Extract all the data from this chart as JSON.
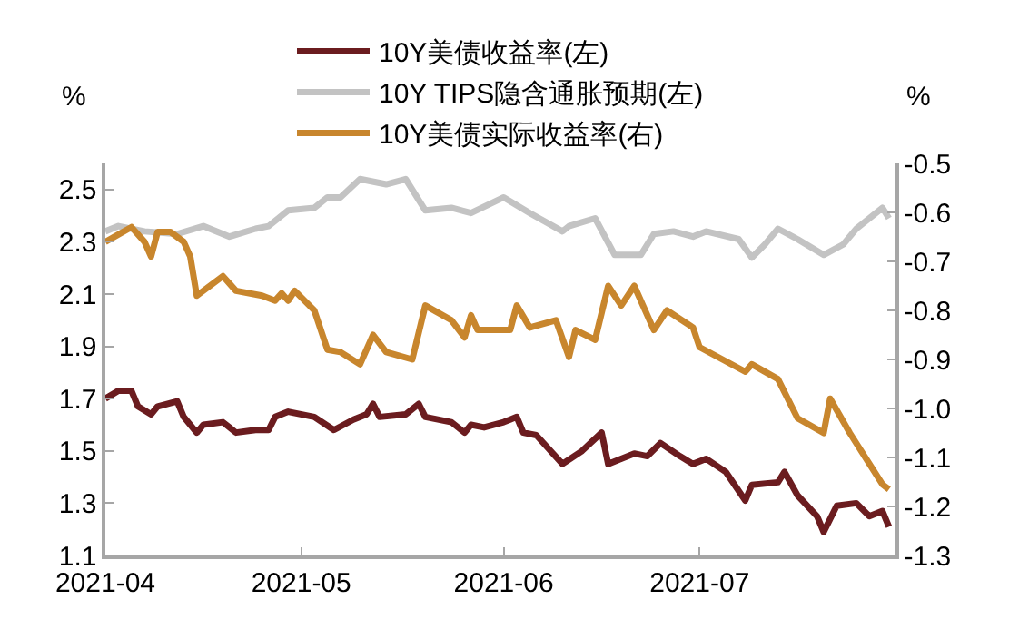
{
  "chart_data": {
    "type": "line",
    "ylabel": "%",
    "y2label": "%",
    "xlim": [
      "2021-04-01",
      "2021-07-31"
    ],
    "xticks": [
      "2021-04",
      "2021-05",
      "2021-06",
      "2021-07"
    ],
    "ylim": [
      1.1,
      2.6
    ],
    "yticks": [
      1.1,
      1.3,
      1.5,
      1.7,
      1.9,
      2.1,
      2.3,
      2.5
    ],
    "y2lim": [
      -1.3,
      -0.5
    ],
    "y2ticks": [
      -1.3,
      -1.2,
      -1.1,
      {
        "value": -1.0,
        "label": "-1.0"
      },
      -0.9,
      -0.8,
      -0.7,
      -0.6,
      -0.5
    ],
    "legend": "top",
    "marker": "none",
    "line_style": "solid",
    "series": [
      {
        "name": "10Y美债收益率(左)",
        "color": "#6b1c1f",
        "x": [
          "2021-04-01",
          "2021-04-03",
          "2021-04-05",
          "2021-04-06",
          "2021-04-08",
          "2021-04-09",
          "2021-04-12",
          "2021-04-13",
          "2021-04-15",
          "2021-04-16",
          "2021-04-19",
          "2021-04-21",
          "2021-04-24",
          "2021-04-26",
          "2021-04-27",
          "2021-04-29",
          "2021-05-03",
          "2021-05-06",
          "2021-05-09",
          "2021-05-11",
          "2021-05-12",
          "2021-05-13",
          "2021-05-17",
          "2021-05-19",
          "2021-05-20",
          "2021-05-24",
          "2021-05-26",
          "2021-05-27",
          "2021-05-29",
          "2021-06-01",
          "2021-06-02",
          "2021-06-03",
          "2021-06-04",
          "2021-06-06",
          "2021-06-10",
          "2021-06-13",
          "2021-06-16",
          "2021-06-17",
          "2021-06-21",
          "2021-06-23",
          "2021-06-25",
          "2021-06-28",
          "2021-06-30",
          "2021-07-02",
          "2021-07-05",
          "2021-07-08",
          "2021-07-09",
          "2021-07-13",
          "2021-07-14",
          "2021-07-16",
          "2021-07-19",
          "2021-07-20",
          "2021-07-22",
          "2021-07-25",
          "2021-07-27",
          "2021-07-29",
          "2021-07-30"
        ],
        "values": [
          1.7,
          1.73,
          1.73,
          1.67,
          1.64,
          1.67,
          1.69,
          1.63,
          1.57,
          1.6,
          1.61,
          1.57,
          1.58,
          1.58,
          1.63,
          1.65,
          1.63,
          1.58,
          1.62,
          1.64,
          1.68,
          1.63,
          1.64,
          1.68,
          1.63,
          1.61,
          1.57,
          1.6,
          1.59,
          1.61,
          1.62,
          1.63,
          1.57,
          1.56,
          1.45,
          1.5,
          1.57,
          1.45,
          1.49,
          1.48,
          1.53,
          1.48,
          1.45,
          1.47,
          1.42,
          1.31,
          1.37,
          1.38,
          1.42,
          1.33,
          1.25,
          1.19,
          1.29,
          1.3,
          1.25,
          1.27,
          1.21
        ]
      },
      {
        "name": "10Y TIPS隐含通胀预期(左)",
        "color": "#c3c3c3",
        "x": [
          "2021-04-01",
          "2021-04-03",
          "2021-04-07",
          "2021-04-12",
          "2021-04-16",
          "2021-04-20",
          "2021-04-24",
          "2021-04-26",
          "2021-04-29",
          "2021-05-03",
          "2021-05-05",
          "2021-05-07",
          "2021-05-10",
          "2021-05-14",
          "2021-05-17",
          "2021-05-20",
          "2021-05-24",
          "2021-05-27",
          "2021-06-01",
          "2021-06-05",
          "2021-06-10",
          "2021-06-11",
          "2021-06-15",
          "2021-06-18",
          "2021-06-22",
          "2021-06-24",
          "2021-06-27",
          "2021-06-30",
          "2021-07-02",
          "2021-07-07",
          "2021-07-09",
          "2021-07-11",
          "2021-07-13",
          "2021-07-16",
          "2021-07-20",
          "2021-07-23",
          "2021-07-25",
          "2021-07-27",
          "2021-07-29",
          "2021-07-30"
        ],
        "values": [
          2.34,
          2.36,
          2.34,
          2.33,
          2.36,
          2.32,
          2.35,
          2.36,
          2.42,
          2.43,
          2.47,
          2.47,
          2.54,
          2.52,
          2.54,
          2.42,
          2.43,
          2.41,
          2.47,
          2.41,
          2.34,
          2.36,
          2.39,
          2.25,
          2.25,
          2.33,
          2.34,
          2.32,
          2.34,
          2.31,
          2.24,
          2.29,
          2.35,
          2.31,
          2.25,
          2.29,
          2.35,
          2.39,
          2.43,
          2.39
        ]
      },
      {
        "name": "10Y美债实际收益率(右)",
        "color": "#c8862d",
        "axis": "y2",
        "x": [
          "2021-04-01",
          "2021-04-05",
          "2021-04-07",
          "2021-04-08",
          "2021-04-09",
          "2021-04-11",
          "2021-04-13",
          "2021-04-14",
          "2021-04-15",
          "2021-04-19",
          "2021-04-21",
          "2021-04-25",
          "2021-04-27",
          "2021-04-28",
          "2021-04-29",
          "2021-04-30",
          "2021-05-03",
          "2021-05-05",
          "2021-05-07",
          "2021-05-10",
          "2021-05-12",
          "2021-05-14",
          "2021-05-18",
          "2021-05-20",
          "2021-05-24",
          "2021-05-26",
          "2021-05-27",
          "2021-05-28",
          "2021-06-02",
          "2021-06-03",
          "2021-06-05",
          "2021-06-09",
          "2021-06-11",
          "2021-06-12",
          "2021-06-15",
          "2021-06-17",
          "2021-06-19",
          "2021-06-21",
          "2021-06-24",
          "2021-06-26",
          "2021-06-30",
          "2021-07-01",
          "2021-07-08",
          "2021-07-09",
          "2021-07-13",
          "2021-07-16",
          "2021-07-20",
          "2021-07-21",
          "2021-07-24",
          "2021-07-29",
          "2021-07-30"
        ],
        "values": [
          -0.66,
          -0.63,
          -0.66,
          -0.69,
          -0.64,
          -0.64,
          -0.66,
          -0.69,
          -0.77,
          -0.73,
          -0.76,
          -0.77,
          -0.78,
          -0.765,
          -0.78,
          -0.76,
          -0.8,
          -0.88,
          -0.885,
          -0.91,
          -0.85,
          -0.885,
          -0.9,
          -0.79,
          -0.82,
          -0.855,
          -0.81,
          -0.84,
          -0.84,
          -0.79,
          -0.835,
          -0.82,
          -0.895,
          -0.84,
          -0.86,
          -0.75,
          -0.79,
          -0.75,
          -0.84,
          -0.8,
          -0.835,
          -0.875,
          -0.925,
          -0.91,
          -0.94,
          -1.02,
          -1.05,
          -0.98,
          -1.05,
          -1.155,
          -1.165
        ]
      }
    ]
  }
}
